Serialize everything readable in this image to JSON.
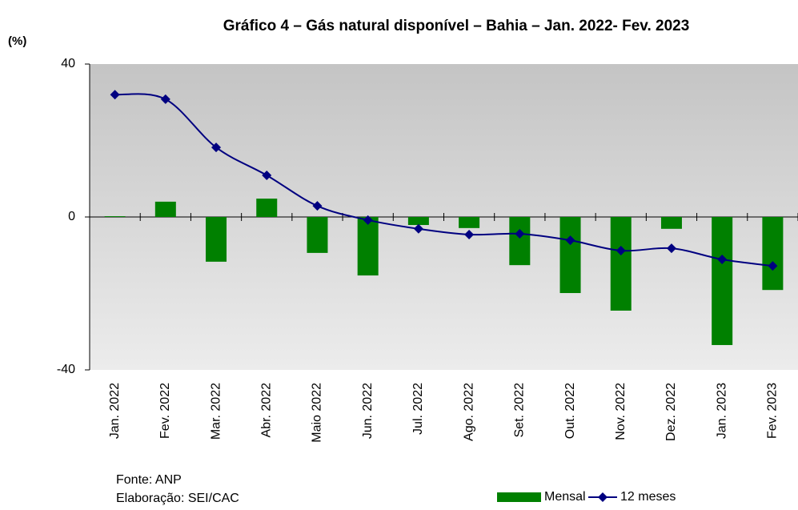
{
  "chart_data": {
    "type": "bar_line",
    "title": "Gráfico 4 – Gás natural disponível – Bahia – Jan. 2022- Fev. 2023",
    "y_axis_label": "(%)",
    "categories": [
      "Jan. 2022",
      "Fev. 2022",
      "Mar. 2022",
      "Abr. 2022",
      "Maio 2022",
      "Jun. 2022",
      "Jul. 2022",
      "Ago. 2022",
      "Set. 2022",
      "Out. 2022",
      "Nov. 2022",
      "Dez. 2022",
      "Jan. 2023",
      "Fev. 2023"
    ],
    "series": [
      {
        "name": "Mensal",
        "type": "bar",
        "color": "#008000",
        "values": [
          0.2,
          4.0,
          -11.7,
          4.8,
          -9.4,
          -15.3,
          -2.1,
          -2.9,
          -12.6,
          -19.9,
          -24.5,
          -3.1,
          -33.5,
          -19.1
        ]
      },
      {
        "name": "12 meses",
        "type": "line",
        "color": "#000080",
        "values": [
          32.0,
          30.8,
          18.2,
          10.9,
          2.9,
          -0.8,
          -3.1,
          -4.6,
          -4.4,
          -6.1,
          -8.8,
          -8.2,
          -11.1,
          -12.8
        ]
      }
    ],
    "ylim": [
      -40,
      40
    ],
    "yticks": [
      -40,
      0,
      40
    ],
    "source": "Fonte: ANP",
    "credit": "Elaboração: SEI/CAC"
  }
}
